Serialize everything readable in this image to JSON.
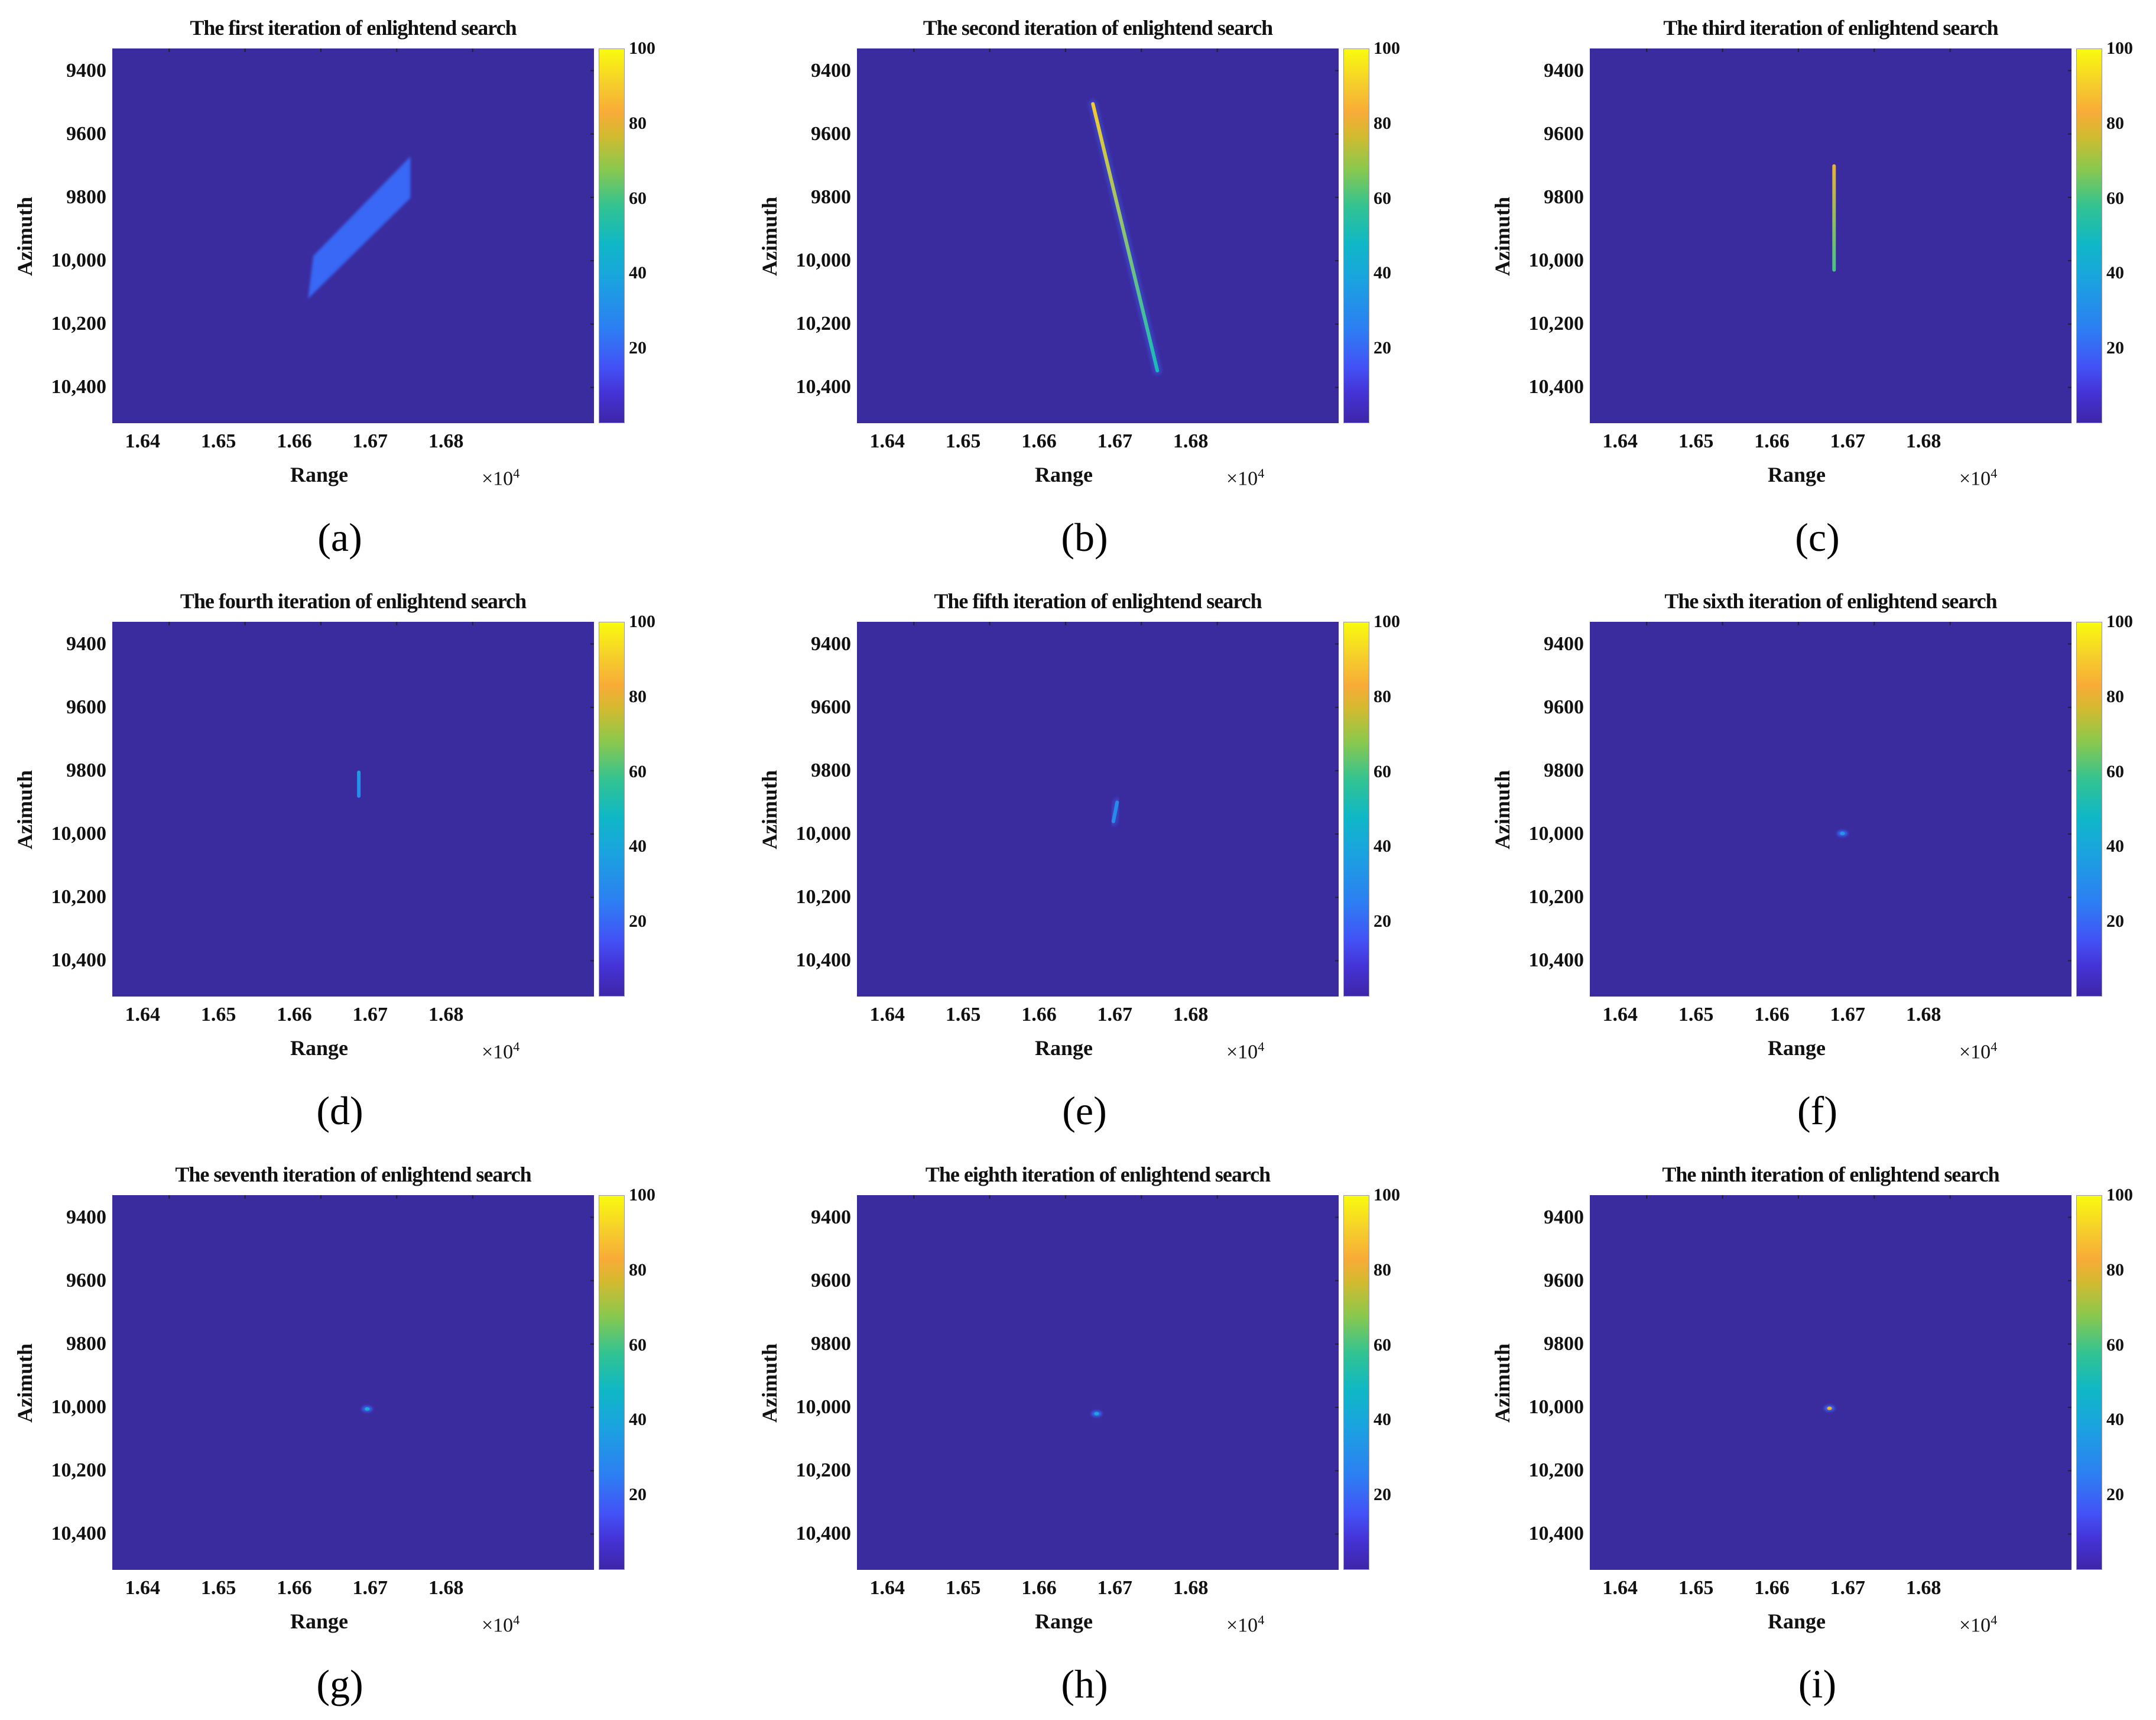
{
  "axes": {
    "xlabel": "Range",
    "ylabel": "Azimuth",
    "x_exponent_base": "×10",
    "x_exponent_power": "4",
    "xlim": [
      16325,
      16960
    ],
    "ylim": [
      9330,
      10513
    ],
    "y_reversed": true,
    "xticks": [
      {
        "value": 16400,
        "label": "1.64"
      },
      {
        "value": 16500,
        "label": "1.65"
      },
      {
        "value": 16600,
        "label": "1.66"
      },
      {
        "value": 16700,
        "label": "1.67"
      },
      {
        "value": 16800,
        "label": "1.68"
      }
    ],
    "yticks": [
      {
        "value": 9400,
        "label": "9400"
      },
      {
        "value": 9600,
        "label": "9600"
      },
      {
        "value": 9800,
        "label": "9800"
      },
      {
        "value": 10000,
        "label": "10,000"
      },
      {
        "value": 10200,
        "label": "10,200"
      },
      {
        "value": 10400,
        "label": "10,400"
      }
    ],
    "colorbar": {
      "range": [
        0,
        100
      ],
      "ticks": [
        {
          "value": 20,
          "label": "20"
        },
        {
          "value": 40,
          "label": "40"
        },
        {
          "value": 60,
          "label": "60"
        },
        {
          "value": 80,
          "label": "80"
        },
        {
          "value": 100,
          "label": "100"
        }
      ],
      "colormap": "parula"
    },
    "background_color": "#3a2b9f"
  },
  "chart_data": [
    {
      "type": "heatmap",
      "caption": "(a)",
      "title": "The first iteration of enlightend search",
      "features": [
        {
          "kind": "polygon",
          "value": 20,
          "points": [
            [
              16583,
              10120
            ],
            [
              16590,
              9985
            ],
            [
              16718,
              9671
            ],
            [
              16718,
              9802
            ]
          ]
        }
      ]
    },
    {
      "type": "heatmap",
      "caption": "(b)",
      "title": "The second iteration of enlightend search",
      "features": [
        {
          "kind": "line",
          "value_start": 90,
          "value_end": 50,
          "from": [
            16636,
            9505
          ],
          "to": [
            16721,
            10347
          ]
        }
      ]
    },
    {
      "type": "heatmap",
      "caption": "(c)",
      "title": "The third iteration of enlightend search",
      "features": [
        {
          "kind": "line",
          "value_start": 80,
          "value_end": 60,
          "from": [
            16647,
            9701
          ],
          "to": [
            16647,
            10029
          ]
        }
      ]
    },
    {
      "type": "heatmap",
      "caption": "(d)",
      "title": "The fourth iteration of enlightend search",
      "features": [
        {
          "kind": "line",
          "value_start": 35,
          "value_end": 30,
          "from": [
            16650,
            9805
          ],
          "to": [
            16650,
            9880
          ]
        }
      ]
    },
    {
      "type": "heatmap",
      "caption": "(e)",
      "title": "The fifth iteration of enlightend search",
      "features": [
        {
          "kind": "line",
          "value_start": 30,
          "value_end": 30,
          "from": [
            16668,
            9900
          ],
          "to": [
            16663,
            9960
          ]
        }
      ]
    },
    {
      "type": "heatmap",
      "caption": "(f)",
      "title": "The sixth  iteration of enlightend search",
      "features": [
        {
          "kind": "spot",
          "value": 35,
          "at": [
            16658,
            9998
          ]
        }
      ]
    },
    {
      "type": "heatmap",
      "caption": "(g)",
      "title": "The seventh  iteration of enlightend search",
      "features": [
        {
          "kind": "spot",
          "value": 45,
          "at": [
            16661,
            10005
          ]
        }
      ]
    },
    {
      "type": "heatmap",
      "caption": "(h)",
      "title": "The eighth iteration of enlightend search",
      "features": [
        {
          "kind": "spot",
          "value": 40,
          "at": [
            16641,
            10020
          ]
        }
      ]
    },
    {
      "type": "heatmap",
      "caption": "(i)",
      "title": "The ninth iteration of enlightend search",
      "features": [
        {
          "kind": "spot",
          "value": 80,
          "at": [
            16641,
            10003
          ]
        }
      ]
    }
  ]
}
